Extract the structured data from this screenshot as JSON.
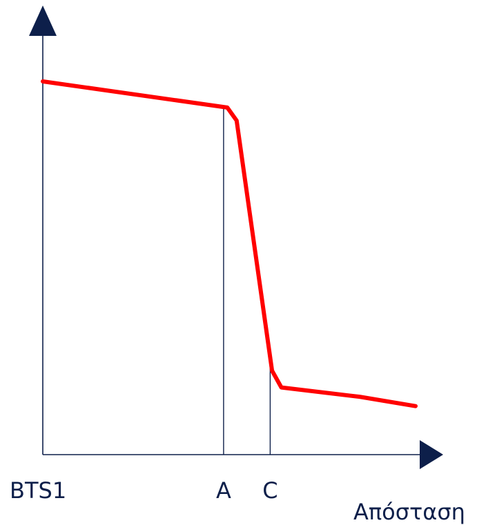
{
  "chart_data": {
    "type": "line",
    "title": "",
    "xlabel": "Απόσταση",
    "ylabel": "",
    "colors": {
      "series": "#ff0000",
      "axes": "#0d1f4a"
    },
    "grid": false,
    "x_tick_labels": [
      {
        "x": 0,
        "label": "BTS1"
      },
      {
        "x": 48.5,
        "label": "A"
      },
      {
        "x": 61,
        "label": "C"
      }
    ],
    "reference_lines": [
      48.5,
      61
    ],
    "xlim": [
      0,
      102
    ],
    "ylim": [
      0,
      100
    ],
    "series": [
      {
        "points": [
          {
            "x": 0,
            "y": 100
          },
          {
            "x": 49.5,
            "y": 93
          },
          {
            "x": 52,
            "y": 89.5
          },
          {
            "x": 61.5,
            "y": 22.5
          },
          {
            "x": 64,
            "y": 18
          },
          {
            "x": 85,
            "y": 15.5
          },
          {
            "x": 100,
            "y": 13
          }
        ]
      }
    ]
  }
}
